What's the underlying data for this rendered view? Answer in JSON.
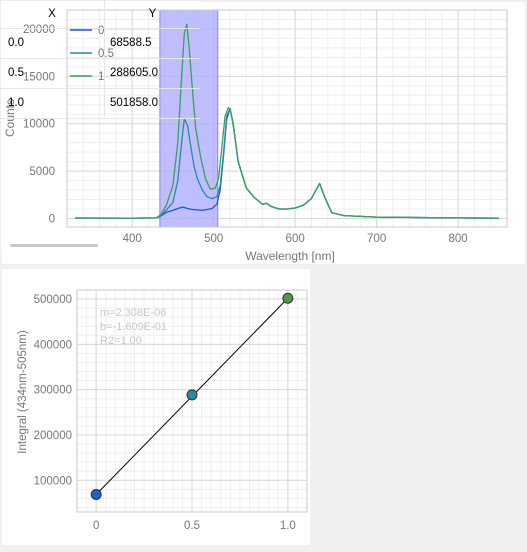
{
  "spectrum_chart": {
    "ylabel": "Counts",
    "xlabel": "Wavelength [nm]",
    "legend": [
      "0",
      "0.5",
      "1"
    ],
    "x_ticks": [
      "400",
      "500",
      "600",
      "700",
      "800"
    ],
    "y_ticks": [
      "0",
      "5000",
      "10000",
      "15000",
      "20000"
    ],
    "colors": {
      "s0": "#1f56d6",
      "s05": "#2a8aa0",
      "s1": "#3ba05a",
      "band": "#aaaaff"
    }
  },
  "calib_chart": {
    "ylabel": "Integral (434nm-505nm)",
    "x_ticks": [
      "0",
      "0.5",
      "1.0"
    ],
    "y_ticks": [
      "100000",
      "200000",
      "300000",
      "400000",
      "500000"
    ],
    "fit_m": "m=2.308E-06",
    "fit_b": "b=-1.609E-01",
    "fit_r2": "R2=1.00",
    "point_colors": [
      "#1f5fd6",
      "#2a8aa0",
      "#4c9a45"
    ]
  },
  "chart_data": [
    {
      "type": "line",
      "title": "",
      "xlabel": "Wavelength [nm]",
      "ylabel": "Counts",
      "xlim": [
        320,
        860
      ],
      "ylim": [
        -900,
        22000
      ],
      "grid": true,
      "legend_position": "top-left",
      "highlight_band": [
        434,
        505
      ],
      "series": [
        {
          "name": "0",
          "x": [
            330,
            400,
            430,
            436,
            442,
            450,
            456,
            462,
            468,
            474,
            480,
            486,
            492,
            498,
            504,
            508,
            512,
            516,
            520,
            524,
            530,
            540,
            550,
            560,
            565,
            570,
            580,
            590,
            600,
            610,
            620,
            630,
            636,
            645,
            660,
            700,
            750,
            800,
            850
          ],
          "y": [
            50,
            40,
            60,
            300,
            650,
            850,
            1050,
            1200,
            1050,
            950,
            900,
            850,
            950,
            1050,
            1500,
            3000,
            6500,
            10500,
            11600,
            10000,
            6000,
            3200,
            2200,
            1500,
            1600,
            1300,
            1000,
            1000,
            1100,
            1400,
            2100,
            3700,
            2300,
            600,
            300,
            150,
            100,
            60,
            30
          ]
        },
        {
          "name": "0.5",
          "x": [
            330,
            400,
            430,
            436,
            442,
            450,
            456,
            460,
            464,
            468,
            472,
            476,
            480,
            486,
            492,
            498,
            504,
            508,
            512,
            516,
            520,
            524,
            530,
            540,
            550,
            560,
            565,
            570,
            580,
            590,
            600,
            610,
            620,
            630,
            636,
            645,
            660,
            700,
            750,
            800,
            850
          ],
          "y": [
            50,
            40,
            60,
            400,
            900,
            1700,
            4000,
            7500,
            10500,
            9800,
            7500,
            5500,
            4200,
            3000,
            2300,
            2100,
            2300,
            3500,
            6800,
            10800,
            11600,
            10000,
            6000,
            3200,
            2200,
            1500,
            1600,
            1300,
            1000,
            1000,
            1100,
            1400,
            2100,
            3700,
            2300,
            600,
            300,
            150,
            100,
            60,
            30
          ]
        },
        {
          "name": "1",
          "x": [
            330,
            400,
            430,
            436,
            442,
            450,
            456,
            460,
            464,
            467,
            470,
            474,
            478,
            484,
            490,
            496,
            502,
            506,
            510,
            514,
            518,
            521,
            524,
            530,
            540,
            550,
            560,
            565,
            570,
            580,
            590,
            600,
            610,
            620,
            630,
            636,
            645,
            660,
            700,
            750,
            800,
            850
          ],
          "y": [
            50,
            40,
            60,
            500,
            1400,
            3500,
            8000,
            14000,
            19500,
            20500,
            18000,
            13500,
            9500,
            6500,
            4200,
            3100,
            3200,
            4200,
            7500,
            10800,
            11700,
            11300,
            9800,
            6100,
            3200,
            2200,
            1500,
            1600,
            1300,
            1000,
            1000,
            1100,
            1400,
            2100,
            3700,
            2300,
            600,
            300,
            150,
            100,
            60,
            30
          ]
        }
      ]
    },
    {
      "type": "scatter",
      "title": "",
      "xlabel": "",
      "ylabel": "Integral (434nm-505nm)",
      "xlim": [
        -0.1,
        1.1
      ],
      "ylim": [
        30000,
        520000
      ],
      "grid": true,
      "series": [
        {
          "name": "",
          "x": [
            0.0,
            0.5,
            1.0
          ],
          "y": [
            68588.5,
            288605.0,
            501858.0
          ]
        }
      ],
      "fit_line": {
        "x": [
          0.0,
          1.0
        ],
        "y": [
          68588.5,
          501858.0
        ]
      }
    },
    {
      "type": "table",
      "columns": [
        "X",
        "Y"
      ],
      "rows": [
        [
          "0.0",
          "68588.5"
        ],
        [
          "0.5",
          "288605.0"
        ],
        [
          "1.0",
          "501858.0"
        ]
      ]
    }
  ]
}
